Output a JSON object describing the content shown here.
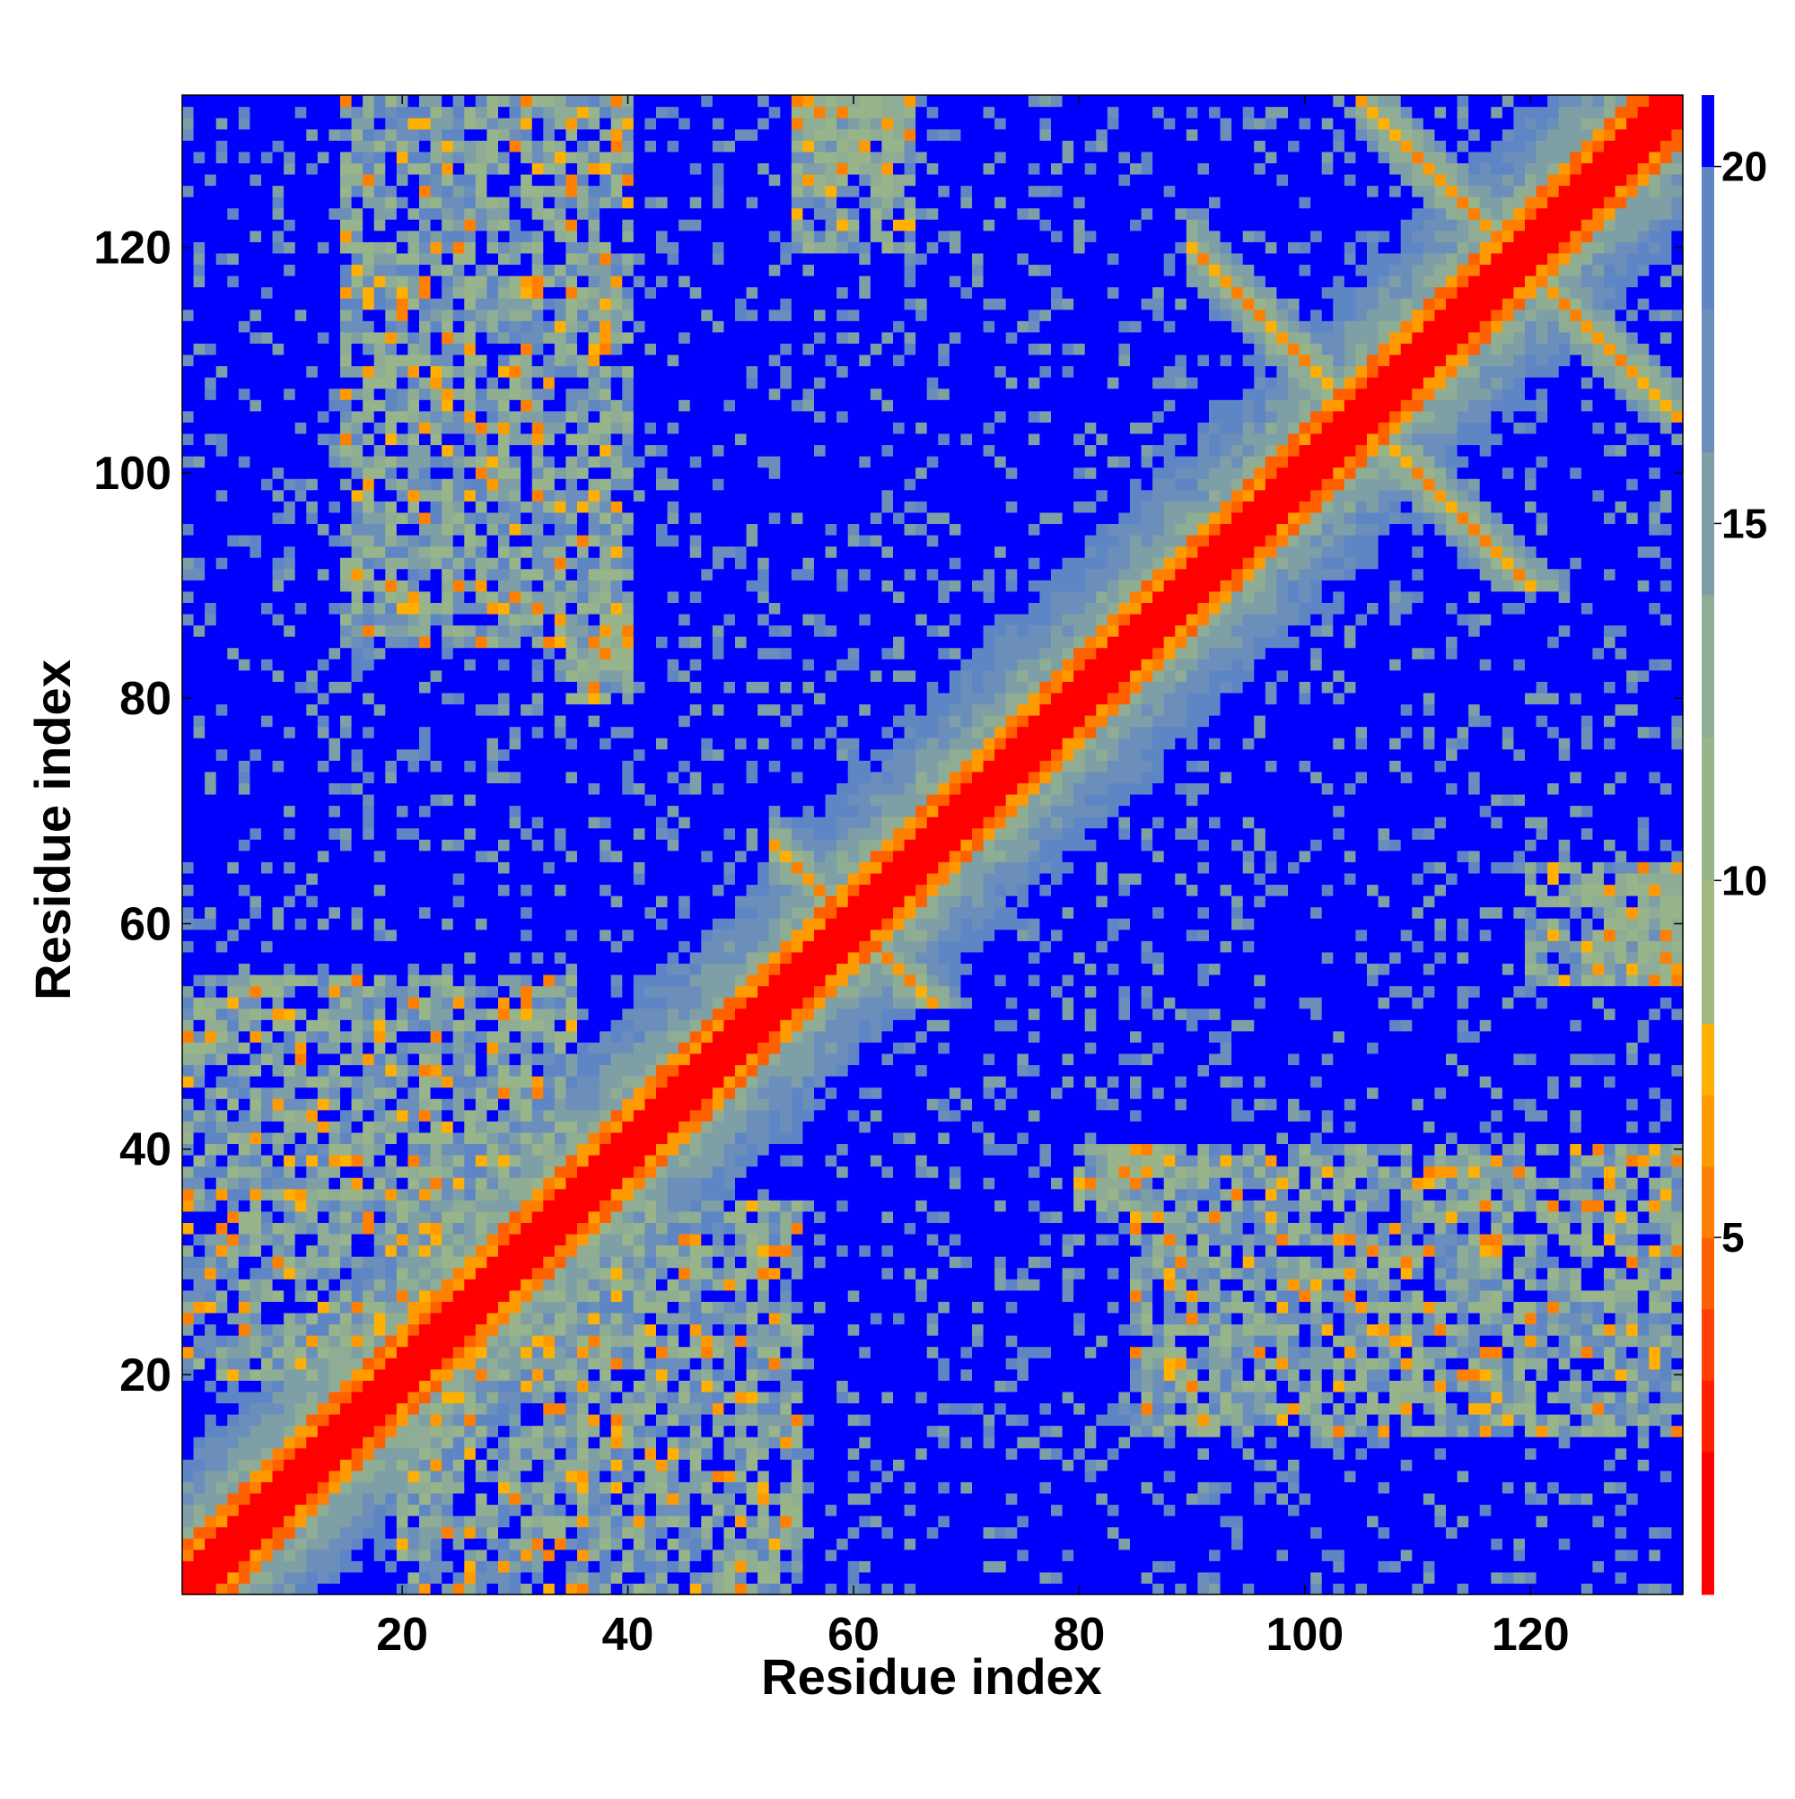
{
  "chart_data": {
    "type": "heatmap",
    "title": "",
    "xlabel": "Residue index",
    "ylabel": "Residue index",
    "xlim": [
      1,
      133
    ],
    "ylim": [
      1,
      133
    ],
    "x_ticks": [
      20,
      40,
      60,
      80,
      100,
      120
    ],
    "y_ticks": [
      20,
      40,
      60,
      80,
      100,
      120
    ],
    "symmetric": true,
    "colorbar": {
      "ticks": [
        5,
        10,
        15,
        20
      ],
      "range": [
        0,
        21
      ],
      "colors": [
        {
          "max": 2,
          "color": "#ff0000"
        },
        {
          "max": 3,
          "color": "#ff2000"
        },
        {
          "max": 4,
          "color": "#ff4000"
        },
        {
          "max": 5,
          "color": "#ff6000"
        },
        {
          "max": 6,
          "color": "#ff8000"
        },
        {
          "max": 7,
          "color": "#ff9a00"
        },
        {
          "max": 8,
          "color": "#ffb000"
        },
        {
          "max": 10,
          "color": "#a0b882"
        },
        {
          "max": 12,
          "color": "#98b48a"
        },
        {
          "max": 14,
          "color": "#8fac95"
        },
        {
          "max": 16,
          "color": "#7f9fa6"
        },
        {
          "max": 18,
          "color": "#6b8fba"
        },
        {
          "max": 20,
          "color": "#5f86c4"
        },
        {
          "max": 21,
          "color": "#0000ff"
        }
      ]
    },
    "contact_features": [
      {
        "type": "diagonal_band",
        "from": 1,
        "to": 133
      },
      {
        "type": "antiparallel",
        "center": [
          105,
          105
        ],
        "range": [
          88,
          118
        ]
      },
      {
        "type": "antiparallel",
        "center": [
          119,
          119
        ],
        "range": [
          105,
          133
        ]
      },
      {
        "type": "antiparallel",
        "center": [
          60,
          60
        ],
        "range": [
          55,
          70
        ]
      },
      {
        "type": "block",
        "x": [
          20,
          55
        ],
        "y": [
          1,
          35
        ]
      },
      {
        "type": "block",
        "x": [
          85,
          133
        ],
        "y": [
          15,
          40
        ]
      },
      {
        "type": "block",
        "x": [
          120,
          133
        ],
        "y": [
          55,
          65
        ]
      },
      {
        "type": "block",
        "x": [
          80,
          88
        ],
        "y": [
          35,
          40
        ]
      },
      {
        "type": "block",
        "x": [
          35,
          40
        ],
        "y": [
          80,
          87
        ]
      },
      {
        "type": "block",
        "x": [
          55,
          65
        ],
        "y": [
          125,
          133
        ]
      }
    ]
  }
}
